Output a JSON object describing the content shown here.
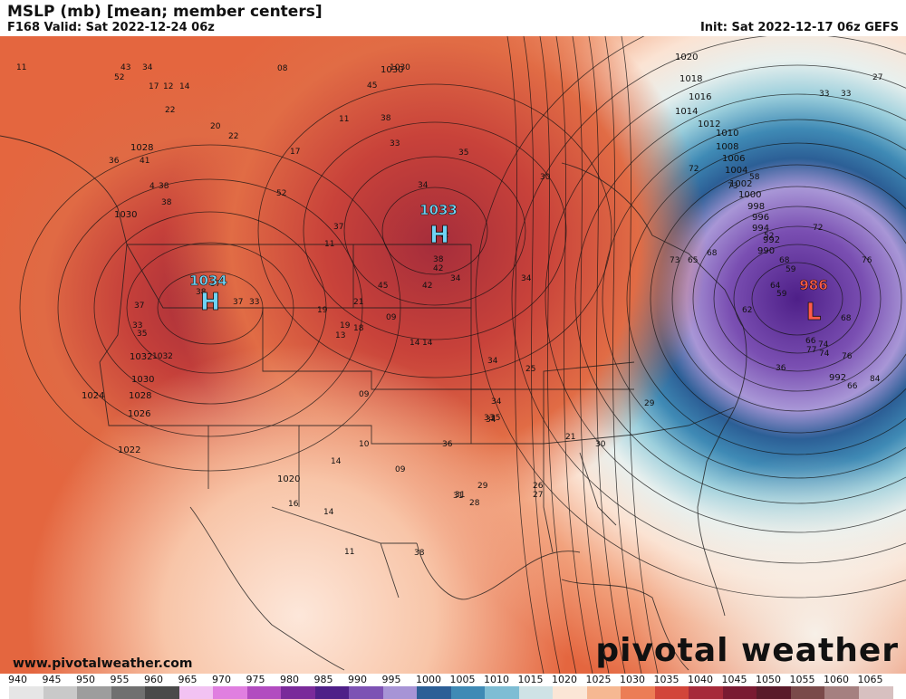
{
  "header": {
    "title": "MSLP (mb) [mean; member centers]",
    "valid": "F168 Valid: Sat 2022-12-24 06z",
    "init": "Init: Sat 2022-12-17 06z GEFS"
  },
  "footer": {
    "website": "www.pivotalweather.com",
    "brand": "pivotal weather"
  },
  "pressure_centers": [
    {
      "letter": "H",
      "value": "1034",
      "color": "#6fd3f5"
    },
    {
      "letter": "H",
      "value": "1033",
      "color": "#6fd3f5"
    },
    {
      "letter": "L",
      "value": "986",
      "color": "#ff5a4a"
    }
  ],
  "isobar_labels": [
    "1030",
    "1028",
    "1032",
    "1030",
    "1028",
    "1026",
    "1024",
    "1022",
    "1020",
    "1030",
    "1020",
    "1018",
    "1016",
    "1014",
    "1012",
    "1010",
    "1008",
    "1006",
    "1004",
    "1002",
    "1000",
    "998",
    "996",
    "994",
    "992",
    "990",
    "992"
  ],
  "member_labels": [
    "11",
    "43",
    "34",
    "52",
    "17",
    "12",
    "14",
    "22",
    "20",
    "22",
    "36",
    "41",
    "4",
    "38",
    "38",
    "08",
    "1030",
    "45",
    "11",
    "38",
    "33",
    "17",
    "35",
    "34",
    "30",
    "52",
    "37",
    "11",
    "45",
    "42",
    "34",
    "34",
    "38",
    "42",
    "21",
    "19",
    "19",
    "18",
    "13",
    "09",
    "14",
    "14",
    "34",
    "25",
    "34",
    "33",
    "35",
    "34",
    "31",
    "1032",
    "37",
    "38",
    "37",
    "33",
    "09",
    "10",
    "14",
    "09",
    "36",
    "31",
    "28",
    "29",
    "26",
    "27",
    "21",
    "30",
    "29",
    "16",
    "14",
    "11",
    "38",
    "42",
    "27",
    "33",
    "33",
    "72",
    "73",
    "58",
    "52",
    "72",
    "73",
    "65",
    "68",
    "68",
    "59",
    "64",
    "62",
    "59",
    "76",
    "68",
    "66",
    "77",
    "74",
    "74",
    "76",
    "84",
    "66",
    "36",
    "37",
    "33",
    "35"
  ],
  "colorbar": {
    "ticks": [
      "940",
      "945",
      "950",
      "955",
      "960",
      "965",
      "970",
      "975",
      "980",
      "985",
      "990",
      "995",
      "1000",
      "1005",
      "1010",
      "1015",
      "1020",
      "1025",
      "1030",
      "1035",
      "1040",
      "1045",
      "1050",
      "1055",
      "1060",
      "1065"
    ],
    "colors": [
      "#e6e6e6",
      "#c9c9c9",
      "#9d9d9d",
      "#707070",
      "#4a4a4a",
      "#f2c2f2",
      "#e07fe0",
      "#b24cc0",
      "#7a2a9a",
      "#4e1f88",
      "#7d52b4",
      "#a794d6",
      "#2c5f96",
      "#3f8ab5",
      "#7ebdd4",
      "#cfe3e6",
      "#fbe6d6",
      "#f6b892",
      "#ec7d56",
      "#d2453a",
      "#a62a3a",
      "#7a1a32",
      "#5a1a2a",
      "#7a4a4a",
      "#a58080",
      "#d7c0c0"
    ]
  }
}
